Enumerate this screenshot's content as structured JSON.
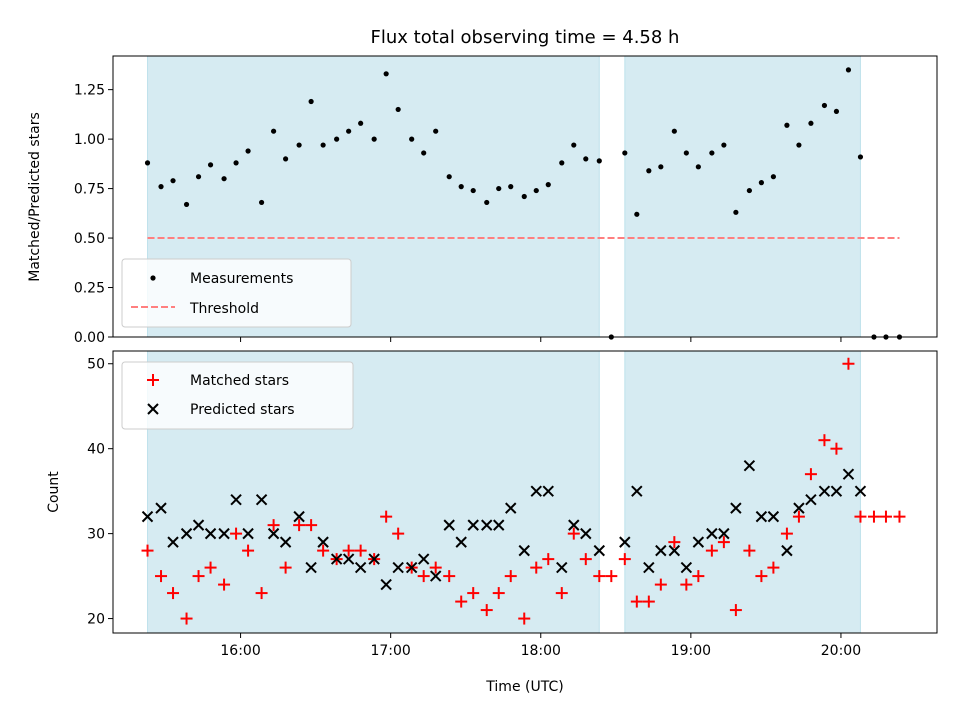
{
  "chart_data": [
    {
      "type": "scatter",
      "title": "Flux total observing time = 4.58 h",
      "xlabel": "",
      "ylabel": "Matched/Predicted stars",
      "ylim": [
        0,
        1.42
      ],
      "yticks": [
        "0.00",
        "0.25",
        "0.50",
        "0.75",
        "1.00",
        "1.25"
      ],
      "x_range_hours": [
        15.15,
        20.64
      ],
      "shaded_intervals": [
        [
          15.38,
          18.39
        ],
        [
          18.56,
          20.13
        ]
      ],
      "shade_color": "#add8e6",
      "threshold": {
        "name": "Threshold",
        "y": 0.5,
        "x": [
          15.38,
          20.39
        ],
        "color": "#ff7f7f"
      },
      "legend": {
        "placement": "lower-left",
        "entries": [
          "Measurements",
          "Threshold"
        ]
      },
      "series": [
        {
          "name": "Measurements",
          "color": "#000000",
          "points": [
            [
              15.38,
              0.88
            ],
            [
              15.47,
              0.76
            ],
            [
              15.55,
              0.79
            ],
            [
              15.64,
              0.67
            ],
            [
              15.72,
              0.81
            ],
            [
              15.8,
              0.87
            ],
            [
              15.89,
              0.8
            ],
            [
              15.97,
              0.88
            ],
            [
              16.05,
              0.94
            ],
            [
              16.14,
              0.68
            ],
            [
              16.22,
              1.04
            ],
            [
              16.3,
              0.9
            ],
            [
              16.39,
              0.97
            ],
            [
              16.47,
              1.19
            ],
            [
              16.55,
              0.97
            ],
            [
              16.64,
              1.0
            ],
            [
              16.72,
              1.04
            ],
            [
              16.8,
              1.08
            ],
            [
              16.89,
              1.0
            ],
            [
              16.97,
              1.33
            ],
            [
              17.05,
              1.15
            ],
            [
              17.14,
              1.0
            ],
            [
              17.22,
              0.93
            ],
            [
              17.3,
              1.04
            ],
            [
              17.39,
              0.81
            ],
            [
              17.47,
              0.76
            ],
            [
              17.55,
              0.74
            ],
            [
              17.64,
              0.68
            ],
            [
              17.72,
              0.75
            ],
            [
              17.8,
              0.76
            ],
            [
              17.89,
              0.71
            ],
            [
              17.97,
              0.74
            ],
            [
              18.05,
              0.77
            ],
            [
              18.14,
              0.88
            ],
            [
              18.22,
              0.97
            ],
            [
              18.3,
              0.9
            ],
            [
              18.39,
              0.89
            ],
            [
              18.47,
              0.0
            ],
            [
              18.56,
              0.93
            ],
            [
              18.64,
              0.62
            ],
            [
              18.72,
              0.84
            ],
            [
              18.8,
              0.86
            ],
            [
              18.89,
              1.04
            ],
            [
              18.97,
              0.93
            ],
            [
              19.05,
              0.86
            ],
            [
              19.14,
              0.93
            ],
            [
              19.22,
              0.97
            ],
            [
              19.3,
              0.63
            ],
            [
              19.39,
              0.74
            ],
            [
              19.47,
              0.78
            ],
            [
              19.55,
              0.81
            ],
            [
              19.64,
              1.07
            ],
            [
              19.72,
              0.97
            ],
            [
              19.8,
              1.08
            ],
            [
              19.89,
              1.17
            ],
            [
              19.97,
              1.14
            ],
            [
              20.05,
              1.35
            ],
            [
              20.13,
              0.91
            ],
            [
              20.22,
              0.0
            ],
            [
              20.3,
              0.0
            ],
            [
              20.39,
              0.0
            ]
          ]
        }
      ]
    },
    {
      "type": "scatter",
      "title": "",
      "xlabel": "Time (UTC)",
      "ylabel": "Count",
      "ylim": [
        18.3,
        51.5
      ],
      "yticks": [
        "20",
        "30",
        "40",
        "50"
      ],
      "xticks": [
        "16:00",
        "17:00",
        "18:00",
        "19:00",
        "20:00"
      ],
      "x_range_hours": [
        15.15,
        20.64
      ],
      "shaded_intervals": [
        [
          15.38,
          18.39
        ],
        [
          18.56,
          20.13
        ]
      ],
      "shade_color": "#add8e6",
      "legend": {
        "placement": "upper-left",
        "entries": [
          "Matched stars",
          "Predicted stars"
        ]
      },
      "series": [
        {
          "name": "Matched stars",
          "marker": "plus",
          "color": "#ff0000",
          "points": [
            [
              15.38,
              28
            ],
            [
              15.47,
              25
            ],
            [
              15.55,
              23
            ],
            [
              15.64,
              20
            ],
            [
              15.72,
              25
            ],
            [
              15.8,
              26
            ],
            [
              15.89,
              24
            ],
            [
              15.97,
              30
            ],
            [
              16.05,
              28
            ],
            [
              16.14,
              23
            ],
            [
              16.22,
              31
            ],
            [
              16.3,
              26
            ],
            [
              16.39,
              31
            ],
            [
              16.47,
              31
            ],
            [
              16.55,
              28
            ],
            [
              16.64,
              27
            ],
            [
              16.72,
              28
            ],
            [
              16.8,
              28
            ],
            [
              16.89,
              27
            ],
            [
              16.97,
              32
            ],
            [
              17.05,
              30
            ],
            [
              17.14,
              26
            ],
            [
              17.22,
              25
            ],
            [
              17.3,
              26
            ],
            [
              17.39,
              25
            ],
            [
              17.47,
              22
            ],
            [
              17.55,
              23
            ],
            [
              17.64,
              21
            ],
            [
              17.72,
              23
            ],
            [
              17.8,
              25
            ],
            [
              17.89,
              20
            ],
            [
              17.97,
              26
            ],
            [
              18.05,
              27
            ],
            [
              18.14,
              23
            ],
            [
              18.22,
              30
            ],
            [
              18.3,
              27
            ],
            [
              18.39,
              25
            ],
            [
              18.47,
              25
            ],
            [
              18.56,
              27
            ],
            [
              18.64,
              22
            ],
            [
              18.72,
              22
            ],
            [
              18.8,
              24
            ],
            [
              18.89,
              29
            ],
            [
              18.97,
              24
            ],
            [
              19.05,
              25
            ],
            [
              19.14,
              28
            ],
            [
              19.22,
              29
            ],
            [
              19.3,
              21
            ],
            [
              19.39,
              28
            ],
            [
              19.47,
              25
            ],
            [
              19.55,
              26
            ],
            [
              19.64,
              30
            ],
            [
              19.72,
              32
            ],
            [
              19.8,
              37
            ],
            [
              19.89,
              41
            ],
            [
              19.97,
              40
            ],
            [
              20.05,
              50
            ],
            [
              20.13,
              32
            ],
            [
              20.22,
              32
            ],
            [
              20.3,
              32
            ],
            [
              20.39,
              32
            ]
          ]
        },
        {
          "name": "Predicted stars",
          "marker": "x",
          "color": "#000000",
          "points": [
            [
              15.38,
              32
            ],
            [
              15.47,
              33
            ],
            [
              15.55,
              29
            ],
            [
              15.64,
              30
            ],
            [
              15.72,
              31
            ],
            [
              15.8,
              30
            ],
            [
              15.89,
              30
            ],
            [
              15.97,
              34
            ],
            [
              16.05,
              30
            ],
            [
              16.14,
              34
            ],
            [
              16.22,
              30
            ],
            [
              16.3,
              29
            ],
            [
              16.39,
              32
            ],
            [
              16.47,
              26
            ],
            [
              16.55,
              29
            ],
            [
              16.64,
              27
            ],
            [
              16.72,
              27
            ],
            [
              16.8,
              26
            ],
            [
              16.89,
              27
            ],
            [
              16.97,
              24
            ],
            [
              17.05,
              26
            ],
            [
              17.14,
              26
            ],
            [
              17.22,
              27
            ],
            [
              17.3,
              25
            ],
            [
              17.39,
              31
            ],
            [
              17.47,
              29
            ],
            [
              17.55,
              31
            ],
            [
              17.64,
              31
            ],
            [
              17.72,
              31
            ],
            [
              17.8,
              33
            ],
            [
              17.89,
              28
            ],
            [
              17.97,
              35
            ],
            [
              18.05,
              35
            ],
            [
              18.14,
              26
            ],
            [
              18.22,
              31
            ],
            [
              18.3,
              30
            ],
            [
              18.39,
              28
            ],
            [
              18.56,
              29
            ],
            [
              18.64,
              35
            ],
            [
              18.72,
              26
            ],
            [
              18.8,
              28
            ],
            [
              18.89,
              28
            ],
            [
              18.97,
              26
            ],
            [
              19.05,
              29
            ],
            [
              19.14,
              30
            ],
            [
              19.22,
              30
            ],
            [
              19.3,
              33
            ],
            [
              19.39,
              38
            ],
            [
              19.47,
              32
            ],
            [
              19.55,
              32
            ],
            [
              19.64,
              28
            ],
            [
              19.72,
              33
            ],
            [
              19.8,
              34
            ],
            [
              19.89,
              35
            ],
            [
              19.97,
              35
            ],
            [
              20.05,
              37
            ],
            [
              20.13,
              35
            ]
          ]
        }
      ]
    }
  ]
}
